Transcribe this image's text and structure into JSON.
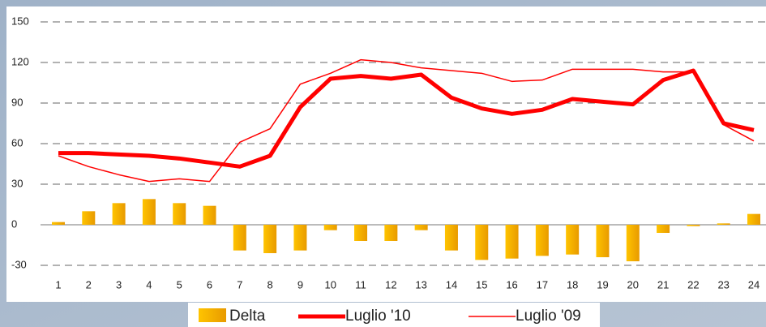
{
  "chart_data": {
    "type": "bar_line",
    "categories": [
      "1",
      "2",
      "3",
      "4",
      "5",
      "6",
      "7",
      "8",
      "9",
      "10",
      "11",
      "12",
      "13",
      "14",
      "15",
      "16",
      "17",
      "18",
      "19",
      "20",
      "21",
      "22",
      "23",
      "24"
    ],
    "series": [
      {
        "name": "Delta",
        "type": "bar",
        "color": "#f5a800",
        "values": [
          2,
          10,
          16,
          19,
          16,
          14,
          -19,
          -21,
          -19,
          -4,
          -12,
          -12,
          -4,
          -19,
          -26,
          -25,
          -23,
          -22,
          -24,
          -27,
          -6,
          -1,
          1,
          8
        ]
      },
      {
        "name": "Luglio '10",
        "type": "line",
        "color": "#ff0000",
        "width": 5,
        "values": [
          53,
          53,
          52,
          51,
          49,
          46,
          43,
          51,
          87,
          108,
          110,
          108,
          111,
          94,
          86,
          82,
          85,
          93,
          91,
          89,
          107,
          114,
          75,
          70
        ]
      },
      {
        "name": "Luglio '09",
        "type": "line",
        "color": "#ff0000",
        "width": 1.5,
        "values": [
          51,
          43,
          37,
          32,
          34,
          32,
          61,
          71,
          104,
          112,
          122,
          120,
          116,
          114,
          112,
          106,
          107,
          115,
          115,
          115,
          113,
          113,
          74,
          62
        ]
      }
    ],
    "ylim": [
      -40,
      150
    ],
    "yticks": [
      -30,
      0,
      30,
      60,
      90,
      120,
      150
    ],
    "grid": true
  }
}
